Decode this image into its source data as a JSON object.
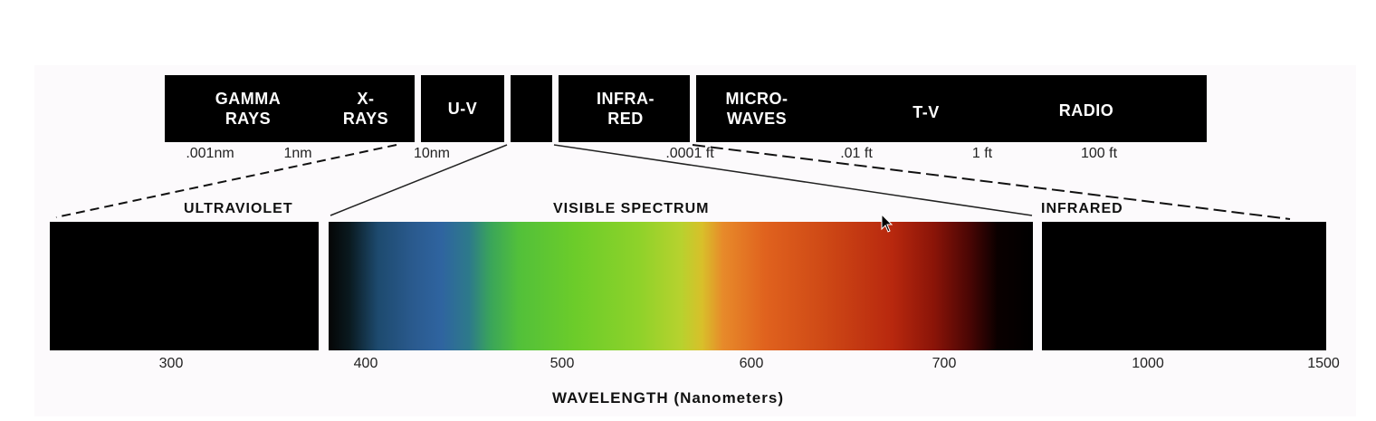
{
  "bands": [
    {
      "id": "gamma",
      "label": "GAMMA\nRAYS"
    },
    {
      "id": "xray",
      "label": "X-RAYS"
    },
    {
      "id": "uv",
      "label": "U-V"
    },
    {
      "id": "ir",
      "label": "INFRA-\nRED"
    },
    {
      "id": "micro",
      "label": "MICRO-\nWAVES"
    },
    {
      "id": "tv",
      "label": "T-V"
    },
    {
      "id": "radio",
      "label": "RADIO"
    }
  ],
  "scale_labels": [
    ".001nm",
    "1nm",
    "10nm",
    ".0001 ft",
    ".01 ft",
    "1 ft",
    "100 ft"
  ],
  "sections": {
    "ultraviolet": "ULTRAVIOLET",
    "visible": "VISIBLE SPECTRUM",
    "infrared": "INFRARED"
  },
  "wavelength_ticks": [
    "300",
    "400",
    "500",
    "600",
    "700",
    "1000",
    "1500"
  ],
  "axis_title": "WAVELENGTH  (Nanometers)"
}
